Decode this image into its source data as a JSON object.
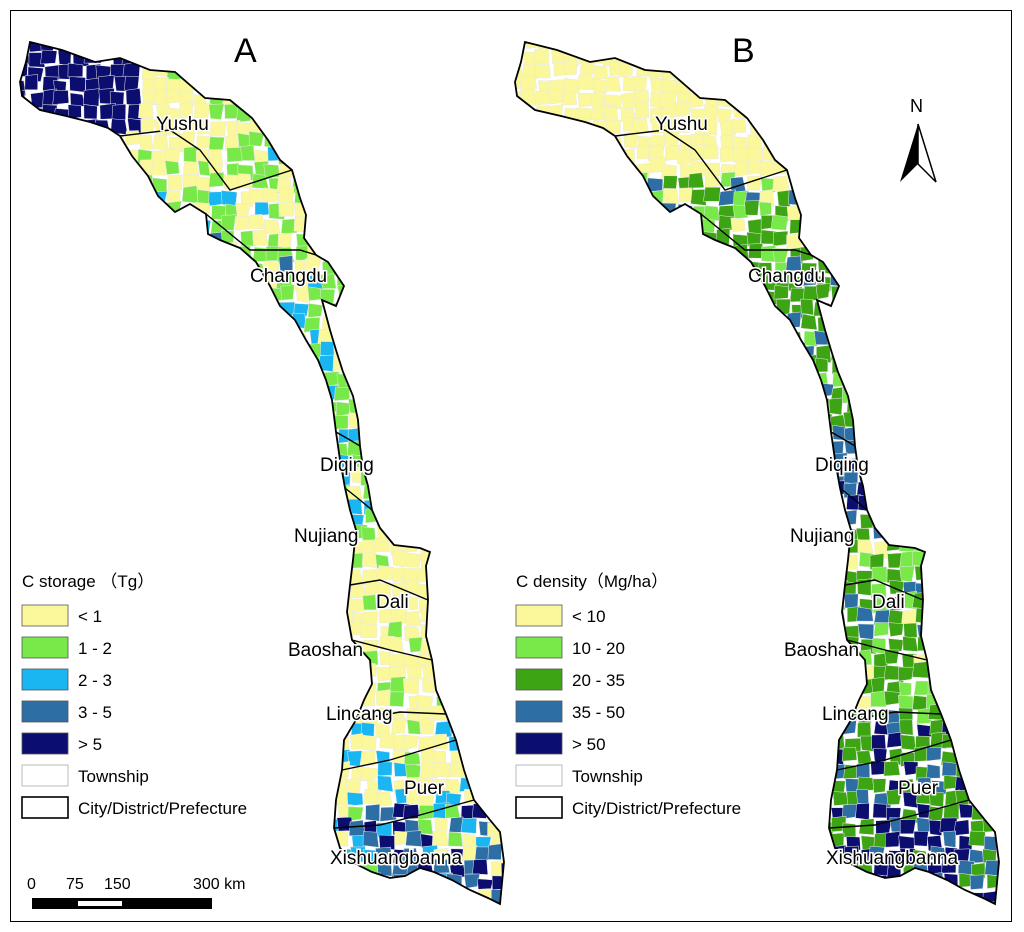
{
  "panels": [
    {
      "id": "A",
      "label": "A",
      "legend": {
        "title": "C storage （Tg）",
        "classes": [
          {
            "label": "< 1",
            "color": "#fbf89b"
          },
          {
            "label": "1 - 2",
            "color": "#79e94a"
          },
          {
            "label": "2 - 3",
            "color": "#1ab6f1"
          },
          {
            "label": "3 - 5",
            "color": "#2d6fa5"
          },
          {
            "label": "> 5",
            "color": "#0b0e6e"
          }
        ],
        "township": "Township",
        "city": "City/District/Prefecture"
      }
    },
    {
      "id": "B",
      "label": "B",
      "legend": {
        "title": "C density（Mg/ha）",
        "classes": [
          {
            "label": "< 10",
            "color": "#fbf89b"
          },
          {
            "label": "10 - 20",
            "color": "#79e94a"
          },
          {
            "label": "20 - 35",
            "color": "#3da414"
          },
          {
            "label": "35 - 50",
            "color": "#2d6fa5"
          },
          {
            "label": "> 50",
            "color": "#0b0e6e"
          }
        ],
        "township": "Township",
        "city": "City/District/Prefecture"
      }
    }
  ],
  "place_names": {
    "yushu": "Yushu",
    "changdu": "Changdu",
    "diqing": "Diqing",
    "nujiang": "Nujiang",
    "dali": "Dali",
    "baoshan": "Baoshan",
    "lincang": "Lincang",
    "puer": "Puer",
    "xishuangbanna": "Xishuangbanna"
  },
  "scale_bar": {
    "ticks": [
      "0",
      "75",
      "150",
      "300 km"
    ]
  },
  "north_arrow": "N",
  "colors": {
    "yellow": "#fbf89b",
    "light_green": "#79e94a",
    "green": "#3da414",
    "light_blue": "#1ab6f1",
    "blue": "#2d6fa5",
    "navy": "#0b0e6e"
  }
}
